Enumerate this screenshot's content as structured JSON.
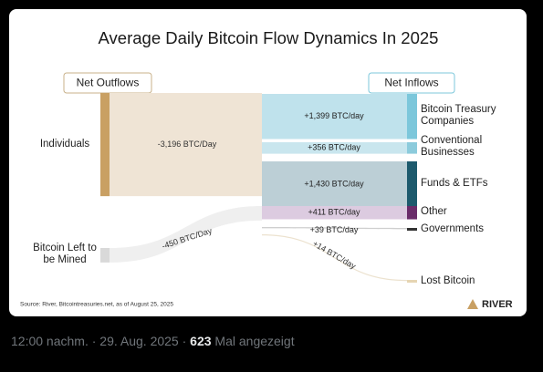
{
  "chart_data": {
    "type": "sankey",
    "title": "Average Daily Bitcoin Flow Dynamics In 2025",
    "outflows": {
      "title": "Net Outflows",
      "nodes": [
        {
          "name": "Individuals",
          "value": -3196,
          "value_label": "-3,196 BTC/Day",
          "color": "#c9a063",
          "flow_color": "#efe4d5"
        },
        {
          "name": "Bitcoin Left to be Mined",
          "value": -450,
          "value_label": "-450 BTC/Day",
          "color": "#d9d9d9",
          "flow_color": "#efefef"
        }
      ]
    },
    "inflows": {
      "title": "Net Inflows",
      "nodes": [
        {
          "name": "Bitcoin Treasury Companies",
          "value": 1399,
          "value_label": "+1,399 BTC/day",
          "color": "#7cc7db",
          "flow_color": "#bfe2ec"
        },
        {
          "name": "Conventional Businesses",
          "value": 356,
          "value_label": "+356 BTC/day",
          "color": "#8ccbdc",
          "flow_color": "#c9e6ee"
        },
        {
          "name": "Funds & ETFs",
          "value": 1430,
          "value_label": "+1,430 BTC/day",
          "color": "#1d5a6d",
          "flow_color": "#bccfd6"
        },
        {
          "name": "Other",
          "value": 411,
          "value_label": "+411 BTC/day",
          "color": "#6a2c6a",
          "flow_color": "#dccbe0"
        },
        {
          "name": "Governments",
          "value": 39,
          "value_label": "+39 BTC/day",
          "color": "#333333",
          "flow_color": "#cfcfcf"
        },
        {
          "name": "Lost Bitcoin",
          "value": 14,
          "value_label": "+14 BTC/day",
          "color": "#e6d5b3",
          "flow_color": "#ece2cf"
        }
      ]
    },
    "source": "Source: River, Bitcointreasuries.net, as of August 25, 2025",
    "brand": "RIVER"
  },
  "tweet": {
    "time": "12:00 nachm.",
    "separator": "·",
    "date": "29. Aug. 2025",
    "views": "623",
    "views_label": "Mal angezeigt"
  }
}
